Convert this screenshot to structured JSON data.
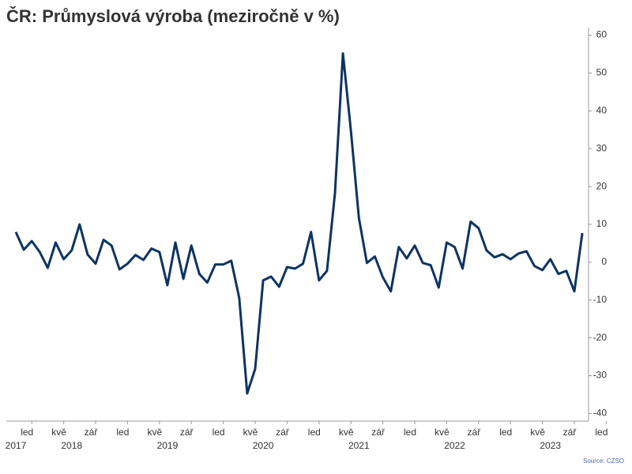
{
  "chart_data": {
    "type": "line",
    "title": "ČR: Průmyslová výroba (meziročně v %)",
    "source": "Source: CZSO",
    "color": "#0d3461",
    "categories": [
      null,
      null,
      "led",
      null,
      null,
      null,
      "kvě",
      null,
      null,
      null,
      "zář",
      null,
      null,
      null,
      "led",
      null,
      null,
      null,
      "kvě",
      null,
      null,
      null,
      "zář",
      null,
      null,
      null,
      "led",
      null,
      null,
      null,
      "kvě",
      null,
      null,
      null,
      "zář",
      null,
      null,
      null,
      "led",
      null,
      null,
      null,
      "kvě",
      null,
      null,
      null,
      "zář",
      null,
      null,
      null,
      "led",
      null,
      null,
      null,
      "kvě",
      null,
      null,
      null,
      "zář",
      null,
      null,
      null,
      "led",
      null,
      null,
      null,
      "kvě",
      null,
      null,
      null,
      "zář",
      null,
      null,
      null,
      "led"
    ],
    "year_labels": [
      "2017",
      null,
      null,
      null,
      null,
      null,
      null,
      "2018",
      null,
      null,
      null,
      null,
      null,
      null,
      null,
      null,
      null,
      null,
      null,
      "2019",
      null,
      null,
      null,
      null,
      null,
      null,
      null,
      null,
      null,
      null,
      null,
      "2020",
      null,
      null,
      null,
      null,
      null,
      null,
      null,
      null,
      null,
      null,
      null,
      "2021",
      null,
      null,
      null,
      null,
      null,
      null,
      null,
      null,
      null,
      null,
      null,
      "2022",
      null,
      null,
      null,
      null,
      null,
      null,
      null,
      null,
      null,
      null,
      null,
      "2023",
      null,
      null,
      null,
      null,
      null,
      null,
      null
    ],
    "values": [
      8,
      3.3,
      5.6,
      2.7,
      -1.5,
      5.2,
      0.8,
      3.1,
      10,
      2,
      -0.4,
      5.9,
      4.4,
      -1.9,
      -0.4,
      1.9,
      0.6,
      3.6,
      2.7,
      -6.1,
      5.2,
      -4.4,
      4.4,
      -3.1,
      -5.4,
      -0.6,
      -0.6,
      0.4,
      -9.4,
      -34.7,
      -28.2,
      -4.8,
      -3.8,
      -6.5,
      -1.3,
      -1.7,
      -0.4,
      8,
      -4.8,
      -2.3,
      18.2,
      55.2,
      34.7,
      11.7,
      -0.2,
      1.5,
      -4,
      -7.7,
      4,
      1,
      4.4,
      -0.2,
      -0.8,
      -6.7,
      5.2,
      4,
      -1.7,
      10.7,
      9,
      3.1,
      1.3,
      2.1,
      0.8,
      2.3,
      2.9,
      -1,
      -2.1,
      0.8,
      -3.1,
      -2.3,
      -7.7,
      7.7,
      null,
      null,
      null
    ],
    "ylim": [
      -42,
      62
    ],
    "yticks": [
      -40,
      -30,
      -20,
      -10,
      0,
      10,
      20,
      30,
      40,
      50,
      60
    ]
  }
}
